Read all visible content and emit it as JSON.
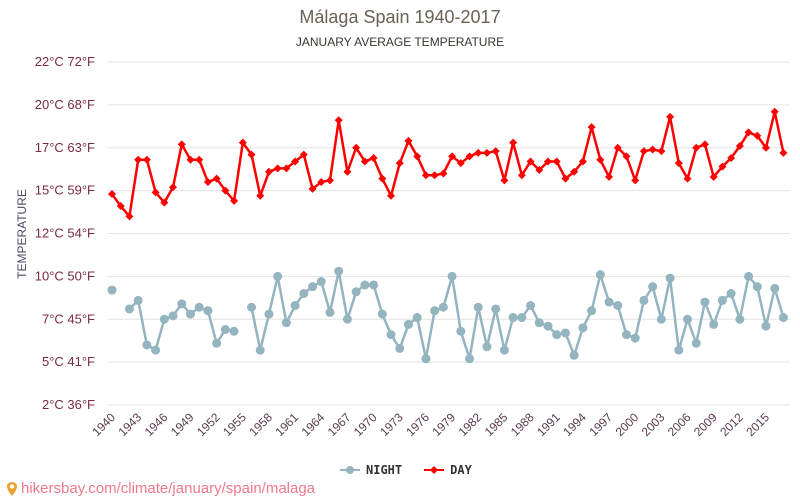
{
  "chart_data": {
    "type": "line",
    "title": "Málaga Spain 1940-2017",
    "subtitle": "JANUARY AVERAGE TEMPERATURE",
    "ylabel": "TEMPERATURE",
    "xlabel": "",
    "ylim": [
      2.5,
      22.5
    ],
    "yticks": [
      {
        "value": 2.5,
        "label": "2°C 36°F"
      },
      {
        "value": 5,
        "label": "5°C 41°F"
      },
      {
        "value": 7.5,
        "label": "7°C 45°F"
      },
      {
        "value": 10,
        "label": "10°C 50°F"
      },
      {
        "value": 12.5,
        "label": "12°C 54°F"
      },
      {
        "value": 15,
        "label": "15°C 59°F"
      },
      {
        "value": 17.5,
        "label": "17°C 63°F"
      },
      {
        "value": 20,
        "label": "20°C 68°F"
      },
      {
        "value": 22.5,
        "label": "22°C 72°F"
      }
    ],
    "xticks": [
      "1940",
      "1943",
      "1946",
      "1949",
      "1952",
      "1955",
      "1958",
      "1961",
      "1964",
      "1967",
      "1970",
      "1973",
      "1976",
      "1979",
      "1982",
      "1985",
      "1988",
      "1991",
      "1994",
      "1997",
      "2000",
      "2003",
      "2006",
      "2009",
      "2012",
      "2015"
    ],
    "x_start": 1940,
    "x_end": 2017,
    "grid": true,
    "legend_position": "bottom",
    "series": [
      {
        "name": "NIGHT",
        "color": "#94b4bf",
        "marker": "circle",
        "values": [
          9.2,
          null,
          8.1,
          8.6,
          6.0,
          5.7,
          7.5,
          7.7,
          8.4,
          7.8,
          8.2,
          8.0,
          6.1,
          6.9,
          6.8,
          null,
          8.2,
          5.7,
          7.8,
          10.0,
          7.3,
          8.3,
          9.0,
          9.4,
          9.7,
          7.9,
          10.3,
          7.5,
          9.1,
          9.5,
          9.5,
          7.8,
          6.6,
          5.8,
          7.2,
          7.6,
          5.2,
          8.0,
          8.2,
          10.0,
          6.8,
          5.2,
          8.2,
          5.9,
          8.1,
          5.7,
          7.6,
          7.6,
          8.3,
          7.3,
          7.1,
          6.6,
          6.7,
          5.4,
          7.0,
          8.0,
          10.1,
          8.5,
          8.3,
          6.6,
          6.4,
          8.6,
          9.4,
          7.5,
          9.9,
          5.7,
          7.5,
          6.1,
          8.5,
          7.2,
          8.6,
          9.0,
          7.5,
          10.0,
          9.4,
          7.1,
          9.3,
          7.6
        ]
      },
      {
        "name": "DAY",
        "color": "#ff0000",
        "marker": "diamond",
        "values": [
          14.8,
          14.1,
          13.5,
          16.8,
          16.8,
          14.9,
          14.3,
          15.2,
          17.7,
          16.8,
          16.8,
          15.5,
          15.7,
          15.0,
          14.4,
          17.8,
          17.1,
          14.7,
          16.1,
          16.3,
          16.3,
          16.7,
          17.1,
          15.1,
          15.5,
          15.6,
          19.1,
          16.1,
          17.5,
          16.7,
          16.9,
          15.7,
          14.7,
          16.6,
          17.9,
          17.0,
          15.9,
          15.9,
          16.0,
          17.0,
          16.6,
          17.0,
          17.2,
          17.2,
          17.3,
          15.6,
          17.8,
          15.9,
          16.7,
          16.2,
          16.7,
          16.7,
          15.7,
          16.1,
          16.7,
          18.7,
          16.8,
          15.8,
          17.5,
          17.0,
          15.6,
          17.3,
          17.4,
          17.3,
          19.3,
          16.6,
          15.7,
          17.5,
          17.7,
          15.8,
          16.4,
          16.9,
          17.6,
          18.4,
          18.2,
          17.5,
          19.6,
          17.2
        ]
      }
    ]
  },
  "watermark": "hikersbay.com/climate/january/spain/malaga"
}
